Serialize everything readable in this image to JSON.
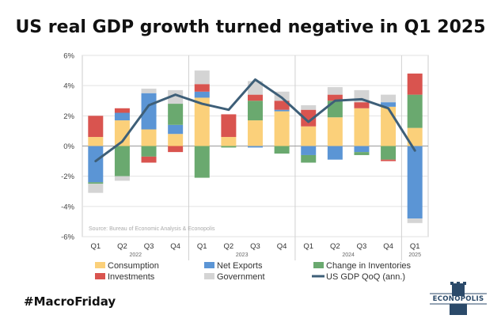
{
  "title": "US real GDP growth turned negative in Q1 2025",
  "hashtag": "#MacroFriday",
  "brand": "ECONOPOLIS",
  "colors": {
    "consumption": "#fbd07a",
    "net_exports": "#5b95d5",
    "inventories": "#6aa96f",
    "investments": "#d9544f",
    "government": "#d4d4d4",
    "line": "#3e5f78",
    "brand": "#2b4a6a"
  },
  "chart_data": {
    "type": "bar",
    "stacked": true,
    "source": "Source: Bureau of Economic Analysis & Econopolis",
    "categories": [
      "Q1",
      "Q2",
      "Q3",
      "Q4",
      "Q1",
      "Q2",
      "Q3",
      "Q4",
      "Q1",
      "Q2",
      "Q3",
      "Q4",
      "Q1"
    ],
    "years": [
      {
        "label": "2022",
        "at_index": 1
      },
      {
        "label": "2023",
        "at_index": 5
      },
      {
        "label": "2024",
        "at_index": 9
      },
      {
        "label": "2025",
        "at_index": 12
      }
    ],
    "year_dividers_after_index": [
      3,
      7,
      11
    ],
    "ylim": [
      -6,
      6
    ],
    "yticks": [
      -6,
      -4,
      -2,
      0,
      2,
      4,
      6
    ],
    "ytick_labels": [
      "-6%",
      "-4%",
      "-2%",
      "0%",
      "2%",
      "4%",
      "6%"
    ],
    "grid": true,
    "legend_position": "bottom",
    "series": [
      {
        "name": "Consumption",
        "key": "consumption",
        "values": [
          0.6,
          1.7,
          1.1,
          0.8,
          3.2,
          0.6,
          1.7,
          2.3,
          1.3,
          1.9,
          2.5,
          2.6,
          1.2
        ]
      },
      {
        "name": "Net Exports",
        "key": "net_exports",
        "values": [
          -2.4,
          0.5,
          2.4,
          0.6,
          0.4,
          0.0,
          -0.1,
          0.1,
          -0.6,
          -0.9,
          -0.4,
          0.3,
          -4.8
        ]
      },
      {
        "name": "Change in Inventories",
        "key": "inventories",
        "values": [
          -0.1,
          -2.0,
          -0.7,
          1.4,
          -2.1,
          -0.1,
          1.3,
          -0.5,
          -0.5,
          1.1,
          -0.2,
          -0.9,
          2.2
        ]
      },
      {
        "name": "Investments",
        "key": "investments",
        "values": [
          1.4,
          0.3,
          -0.4,
          -0.4,
          0.5,
          1.5,
          0.4,
          0.6,
          1.1,
          0.4,
          0.4,
          -0.1,
          1.4
        ]
      },
      {
        "name": "Government",
        "key": "government",
        "values": [
          -0.6,
          -0.3,
          0.3,
          0.9,
          0.9,
          0.0,
          0.9,
          0.6,
          0.3,
          0.5,
          0.8,
          0.5,
          -0.3
        ]
      }
    ],
    "line_series": {
      "name": "US GDP QoQ (ann.)",
      "values": [
        -1.0,
        0.3,
        2.7,
        3.4,
        2.8,
        2.4,
        4.4,
        3.2,
        1.6,
        3.0,
        3.1,
        2.5,
        -0.3
      ]
    }
  }
}
